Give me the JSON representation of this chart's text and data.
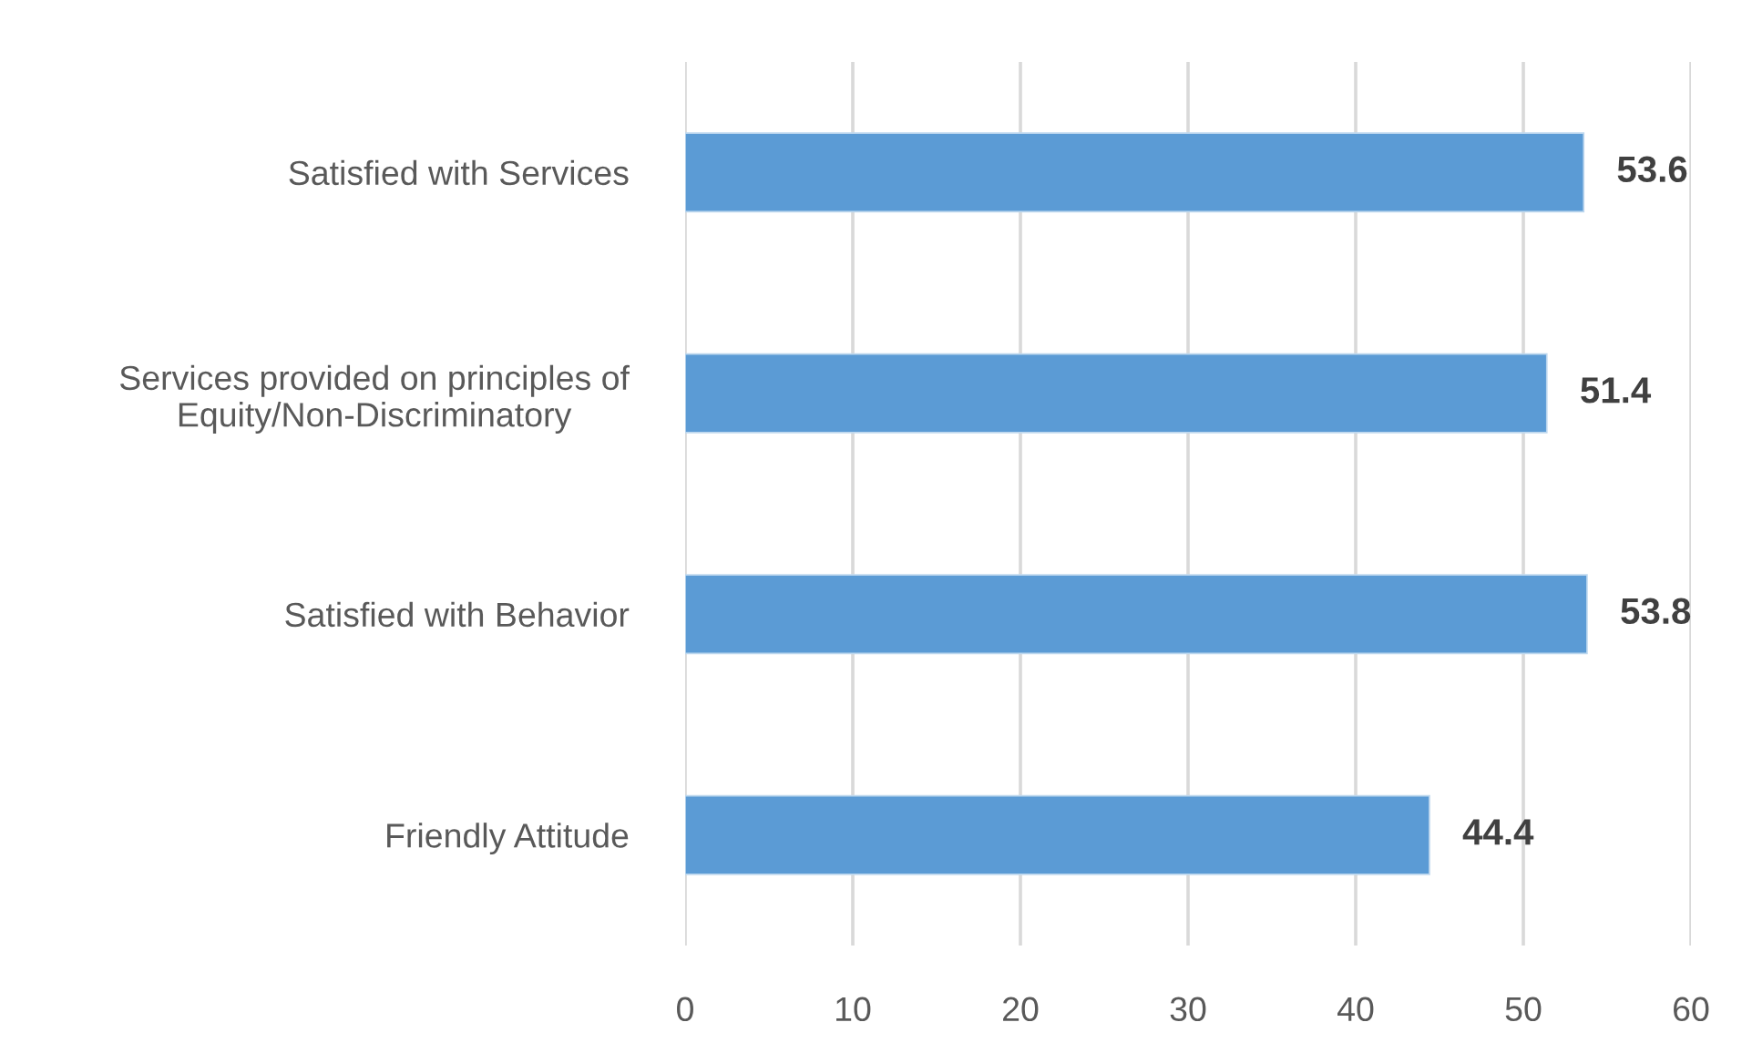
{
  "chart_data": {
    "type": "bar",
    "orientation": "horizontal",
    "categories": [
      "Satisfied with Services",
      "Services provided on principles of\nEquity/Non-Discriminatory",
      "Satisfied with Behavior",
      "Friendly Attitude"
    ],
    "values": [
      53.6,
      51.4,
      53.8,
      44.4
    ],
    "color": "#5b9bd5",
    "xlim": [
      0,
      60
    ],
    "xticks": [
      0,
      10,
      20,
      30,
      40,
      50,
      60
    ],
    "grid": "x",
    "data_labels": true
  }
}
